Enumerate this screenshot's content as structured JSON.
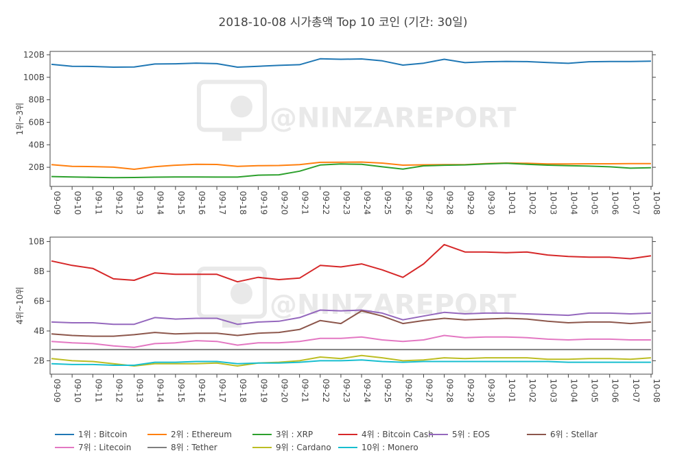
{
  "title": "2018-10-08 시가총액 Top 10 코인 (기간: 30일)",
  "watermark": "@NINZAREPORT",
  "chart_data": [
    {
      "type": "line",
      "ylabel": "1위~3위",
      "ylim": [
        3,
        123
      ],
      "yticks": [
        20,
        40,
        60,
        80,
        100,
        120
      ],
      "ytick_labels": [
        "20B",
        "40B",
        "60B",
        "80B",
        "100B",
        "120B"
      ],
      "x_labels": [
        "09-09",
        "09-10",
        "09-11",
        "09-12",
        "09-13",
        "09-14",
        "09-15",
        "09-16",
        "09-17",
        "09-18",
        "09-19",
        "09-20",
        "09-21",
        "09-22",
        "09-23",
        "09-24",
        "09-25",
        "09-26",
        "09-27",
        "09-28",
        "09-29",
        "09-30",
        "10-01",
        "10-02",
        "10-03",
        "10-04",
        "10-05",
        "10-06",
        "10-07",
        "10-08"
      ],
      "series": [
        {
          "name": "1위 : Bitcoin",
          "color": "#1f77b4",
          "values": [
            111.5,
            109.8,
            109.6,
            109.0,
            109.2,
            111.8,
            112.0,
            112.6,
            112.1,
            109.0,
            109.8,
            110.6,
            111.2,
            116.4,
            116.0,
            116.3,
            114.6,
            110.8,
            112.5,
            116.0,
            113.0,
            113.8,
            114.1,
            113.9,
            113.1,
            112.4,
            113.8,
            114.0,
            114.0,
            114.3
          ]
        },
        {
          "name": "2위 : Ethereum",
          "color": "#ff7f0e",
          "values": [
            22.3,
            20.8,
            20.6,
            20.1,
            18.2,
            20.5,
            21.8,
            22.6,
            22.5,
            20.8,
            21.4,
            21.6,
            22.4,
            24.4,
            24.5,
            24.6,
            23.7,
            21.9,
            22.2,
            22.3,
            22.3,
            23.3,
            23.8,
            23.5,
            23.0,
            23.0,
            23.1,
            23.1,
            23.2,
            23.3
          ]
        },
        {
          "name": "3위 : XRP",
          "color": "#2ca02c",
          "values": [
            11.8,
            11.4,
            11.1,
            10.8,
            10.9,
            11.2,
            11.4,
            11.4,
            11.3,
            11.3,
            13.0,
            13.3,
            16.5,
            22.0,
            22.9,
            22.6,
            20.4,
            18.4,
            21.3,
            21.8,
            22.1,
            23.0,
            23.5,
            22.7,
            21.9,
            21.4,
            21.0,
            20.4,
            19.2,
            19.6
          ]
        }
      ]
    },
    {
      "type": "line",
      "ylabel": "4위~10위",
      "ylim": [
        1.1,
        10.3
      ],
      "yticks": [
        2,
        4,
        6,
        8,
        10
      ],
      "ytick_labels": [
        "2B",
        "4B",
        "6B",
        "8B",
        "10B"
      ],
      "x_labels": [
        "09-09",
        "09-10",
        "09-11",
        "09-12",
        "09-13",
        "09-14",
        "09-15",
        "09-16",
        "09-17",
        "09-18",
        "09-19",
        "09-20",
        "09-21",
        "09-22",
        "09-23",
        "09-24",
        "09-25",
        "09-26",
        "09-27",
        "09-28",
        "09-29",
        "09-30",
        "10-01",
        "10-02",
        "10-03",
        "10-04",
        "10-05",
        "10-06",
        "10-07",
        "10-08"
      ],
      "series": [
        {
          "name": "4위 : Bitcoin Cash",
          "color": "#d62728",
          "values": [
            8.7,
            8.4,
            8.2,
            7.5,
            7.4,
            7.9,
            7.8,
            7.8,
            7.8,
            7.3,
            7.6,
            7.45,
            7.55,
            8.4,
            8.3,
            8.5,
            8.1,
            7.6,
            8.5,
            9.8,
            9.3,
            9.3,
            9.25,
            9.3,
            9.1,
            9.0,
            8.95,
            8.95,
            8.85,
            9.05
          ]
        },
        {
          "name": "5위 : EOS",
          "color": "#9467bd",
          "values": [
            4.6,
            4.55,
            4.55,
            4.45,
            4.45,
            4.9,
            4.8,
            4.85,
            4.85,
            4.45,
            4.6,
            4.65,
            4.9,
            5.4,
            5.35,
            5.4,
            5.2,
            4.75,
            5.0,
            5.25,
            5.15,
            5.2,
            5.2,
            5.15,
            5.1,
            5.05,
            5.2,
            5.2,
            5.15,
            5.2
          ]
        },
        {
          "name": "6위 : Stellar",
          "color": "#8c564b",
          "values": [
            3.8,
            3.7,
            3.65,
            3.65,
            3.75,
            3.9,
            3.8,
            3.85,
            3.85,
            3.7,
            3.85,
            3.9,
            4.1,
            4.7,
            4.5,
            5.35,
            5.0,
            4.5,
            4.7,
            4.85,
            4.75,
            4.8,
            4.85,
            4.8,
            4.65,
            4.55,
            4.6,
            4.6,
            4.5,
            4.6
          ]
        },
        {
          "name": "7위 : Litecoin",
          "color": "#e377c2",
          "values": [
            3.3,
            3.2,
            3.15,
            3.0,
            2.9,
            3.15,
            3.2,
            3.35,
            3.3,
            3.05,
            3.2,
            3.2,
            3.3,
            3.5,
            3.5,
            3.6,
            3.4,
            3.3,
            3.4,
            3.7,
            3.55,
            3.6,
            3.6,
            3.55,
            3.45,
            3.4,
            3.45,
            3.45,
            3.4,
            3.4
          ]
        },
        {
          "name": "8위 : Tether",
          "color": "#7f7f7f",
          "values": [
            2.75,
            2.75,
            2.75,
            2.75,
            2.75,
            2.75,
            2.75,
            2.75,
            2.75,
            2.75,
            2.75,
            2.75,
            2.75,
            2.75,
            2.75,
            2.75,
            2.75,
            2.75,
            2.75,
            2.75,
            2.75,
            2.75,
            2.75,
            2.75,
            2.75,
            2.75,
            2.75,
            2.75,
            2.75,
            2.75
          ]
        },
        {
          "name": "9위 : Cardano",
          "color": "#bcbd22",
          "values": [
            2.15,
            2.0,
            1.95,
            1.8,
            1.65,
            1.8,
            1.8,
            1.8,
            1.85,
            1.65,
            1.85,
            1.9,
            2.0,
            2.25,
            2.15,
            2.35,
            2.2,
            2.0,
            2.05,
            2.2,
            2.15,
            2.2,
            2.2,
            2.2,
            2.1,
            2.1,
            2.15,
            2.15,
            2.1,
            2.2
          ]
        },
        {
          "name": "10위 : Monero",
          "color": "#17becf",
          "values": [
            1.8,
            1.75,
            1.75,
            1.7,
            1.7,
            1.9,
            1.9,
            1.95,
            1.95,
            1.8,
            1.85,
            1.85,
            1.9,
            2.0,
            2.0,
            2.05,
            1.95,
            1.9,
            1.95,
            1.95,
            1.95,
            1.95,
            1.95,
            1.95,
            1.95,
            1.9,
            1.9,
            1.9,
            1.9,
            1.9
          ]
        }
      ]
    }
  ],
  "legend": {
    "placement": "bottom",
    "items": [
      {
        "name": "1위 : Bitcoin",
        "color": "#1f77b4"
      },
      {
        "name": "2위 : Ethereum",
        "color": "#ff7f0e"
      },
      {
        "name": "3위 : XRP",
        "color": "#2ca02c"
      },
      {
        "name": "4위 : Bitcoin Cash",
        "color": "#d62728"
      },
      {
        "name": "5위 : EOS",
        "color": "#9467bd"
      },
      {
        "name": "6위 : Stellar",
        "color": "#8c564b"
      },
      {
        "name": "7위 : Litecoin",
        "color": "#e377c2"
      },
      {
        "name": "8위 : Tether",
        "color": "#7f7f7f"
      },
      {
        "name": "9위 : Cardano",
        "color": "#bcbd22"
      },
      {
        "name": "10위 : Monero",
        "color": "#17becf"
      }
    ]
  }
}
